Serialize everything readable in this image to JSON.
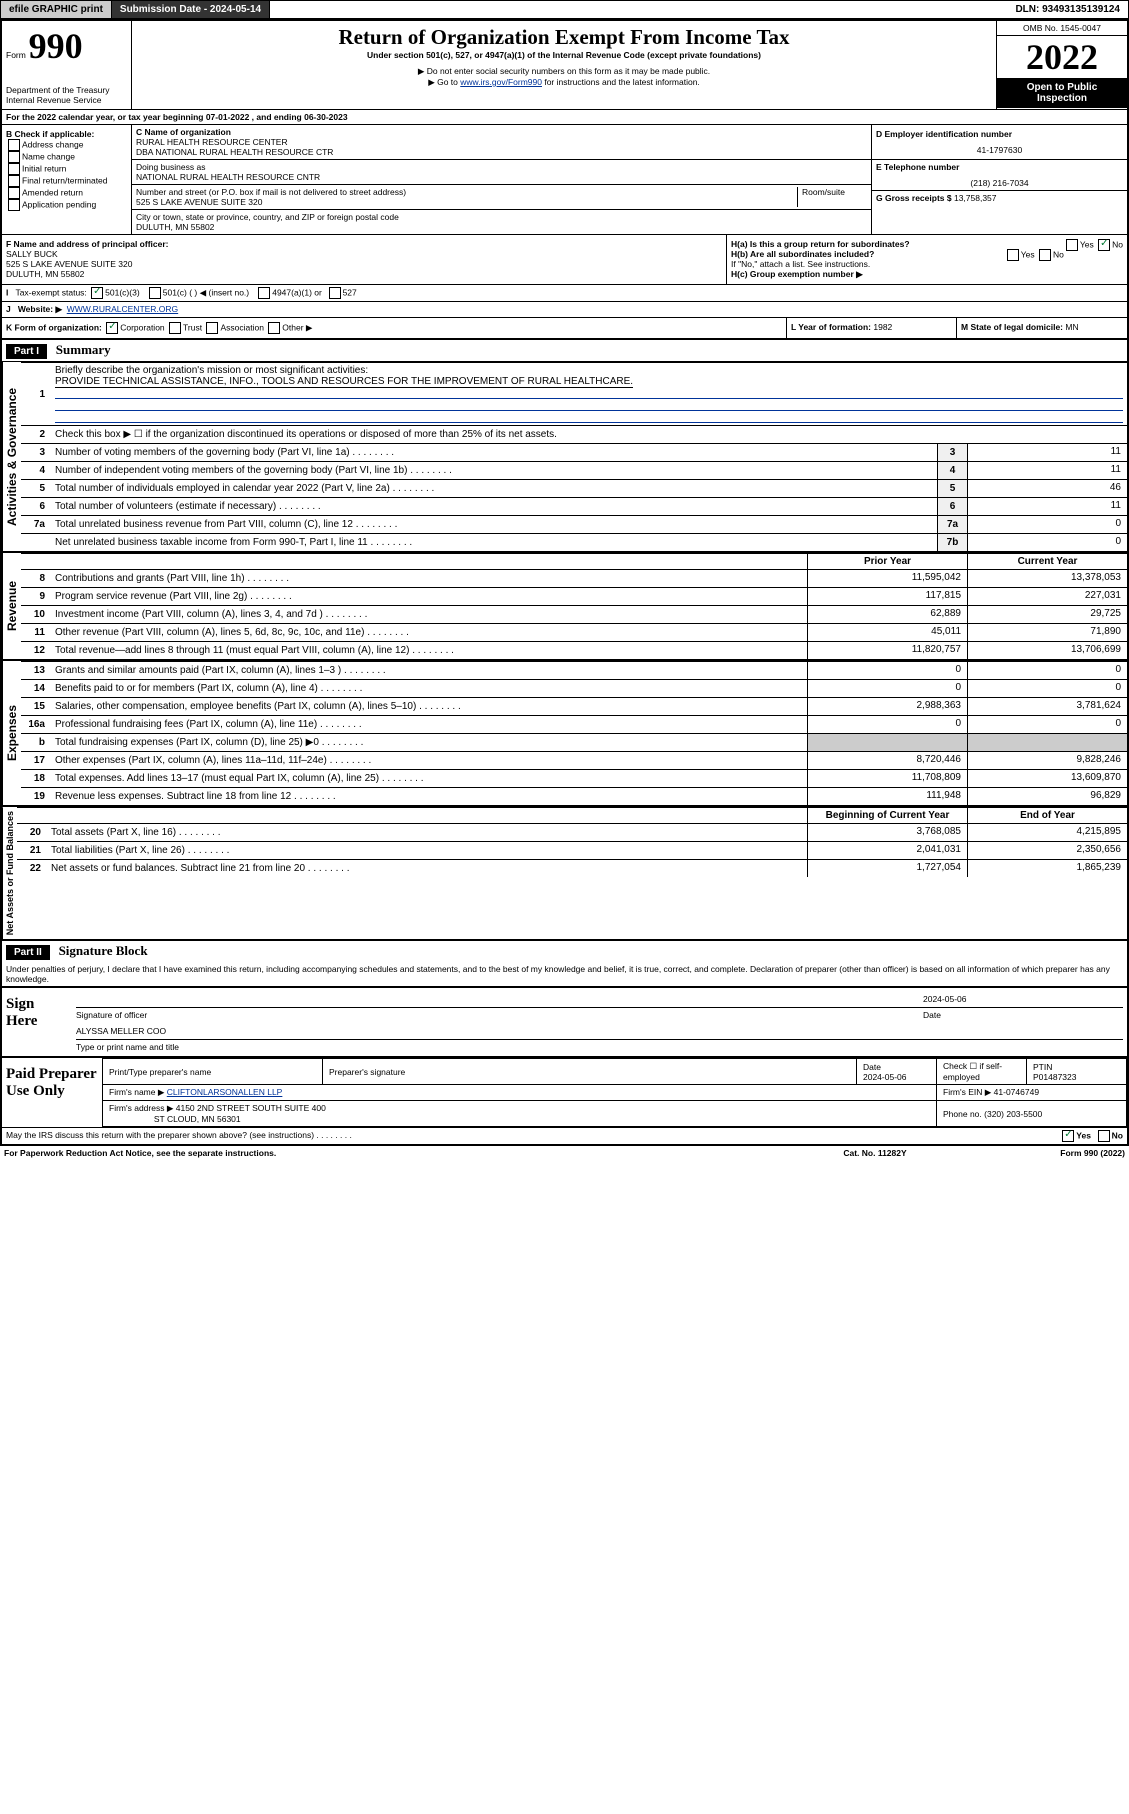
{
  "hdr": {
    "efile": "efile GRAPHIC print",
    "subdate_lbl": "Submission Date - ",
    "subdate": "2024-05-14",
    "dln_lbl": "DLN: ",
    "dln": "93493135139124"
  },
  "top": {
    "form": "Form",
    "f990": "990",
    "dept": "Department of the Treasury",
    "irs": "Internal Revenue Service",
    "title": "Return of Organization Exempt From Income Tax",
    "sub": "Under section 501(c), 527, or 4947(a)(1) of the Internal Revenue Code (except private foundations)",
    "note1": "▶ Do not enter social security numbers on this form as it may be made public.",
    "note2_pre": "▶ Go to ",
    "note2_link": "www.irs.gov/Form990",
    "note2_post": " for instructions and the latest information.",
    "omb": "OMB No. 1545-0047",
    "yr": "2022",
    "open": "Open to Public Inspection"
  },
  "A": {
    "line": "For the 2022 calendar year, or tax year beginning 07-01-2022    , and ending 06-30-2023"
  },
  "B": {
    "hdr": "B Check if applicable:",
    "items": [
      "Address change",
      "Name change",
      "Initial return",
      "Final return/terminated",
      "Amended return",
      "Application pending"
    ]
  },
  "C": {
    "lbl": "C Name of organization",
    "name1": "RURAL HEALTH RESOURCE CENTER",
    "name2": "DBA NATIONAL RURAL HEALTH RESOURCE CTR",
    "dba_lbl": "Doing business as",
    "dba": "NATIONAL RURAL HEALTH RESOURCE CNTR",
    "addr_lbl": "Number and street (or P.O. box if mail is not delivered to street address)",
    "room_lbl": "Room/suite",
    "addr": "525 S LAKE AVENUE SUITE 320",
    "city_lbl": "City or town, state or province, country, and ZIP or foreign postal code",
    "city": "DULUTH, MN  55802"
  },
  "D": {
    "lbl": "D Employer identification number",
    "val": "41-1797630"
  },
  "E": {
    "lbl": "E Telephone number",
    "val": "(218) 216-7034"
  },
  "G": {
    "lbl": "G Gross receipts $",
    "val": "13,758,357"
  },
  "F": {
    "lbl": "F  Name and address of principal officer:",
    "name": "SALLY BUCK",
    "addr": "525 S LAKE AVENUE SUITE 320",
    "city": "DULUTH, MN  55802"
  },
  "H": {
    "a": "H(a)  Is this a group return for subordinates?",
    "b": "H(b)  Are all subordinates included?",
    "b2": "If \"No,\" attach a list. See instructions.",
    "c": "H(c)  Group exemption number ▶",
    "yes": "Yes",
    "no": "No"
  },
  "I": {
    "lbl": "Tax-exempt status:",
    "o1": "501(c)(3)",
    "o2": "501(c) (  ) ◀ (insert no.)",
    "o3": "4947(a)(1) or",
    "o4": "527"
  },
  "J": {
    "lbl": "Website: ▶",
    "val": "WWW.RURALCENTER.ORG"
  },
  "K": {
    "lbl": "K Form of organization:",
    "opts": [
      "Corporation",
      "Trust",
      "Association",
      "Other ▶"
    ]
  },
  "L": {
    "lbl": "L Year of formation:",
    "val": "1982"
  },
  "M": {
    "lbl": "M State of legal domicile:",
    "val": "MN"
  },
  "partI": {
    "hdr": "Part I",
    "title": "Summary"
  },
  "p1": {
    "l1": "Briefly describe the organization's mission or most significant activities:",
    "mission": "PROVIDE TECHNICAL ASSISTANCE, INFO., TOOLS AND RESOURCES FOR THE IMPROVEMENT OF RURAL HEALTHCARE.",
    "l2": "Check this box ▶ ☐  if the organization discontinued its operations or disposed of more than 25% of its net assets.",
    "rows": [
      {
        "n": "3",
        "t": "Number of voting members of the governing body (Part VI, line 1a)",
        "box": "3",
        "v": "11"
      },
      {
        "n": "4",
        "t": "Number of independent voting members of the governing body (Part VI, line 1b)",
        "box": "4",
        "v": "11"
      },
      {
        "n": "5",
        "t": "Total number of individuals employed in calendar year 2022 (Part V, line 2a)",
        "box": "5",
        "v": "46"
      },
      {
        "n": "6",
        "t": "Total number of volunteers (estimate if necessary)",
        "box": "6",
        "v": "11"
      },
      {
        "n": "7a",
        "t": "Total unrelated business revenue from Part VIII, column (C), line 12",
        "box": "7a",
        "v": "0"
      },
      {
        "n": "",
        "t": "Net unrelated business taxable income from Form 990-T, Part I, line 11",
        "box": "7b",
        "v": "0"
      }
    ],
    "groups": {
      "ag": "Activities & Governance",
      "rev": "Revenue",
      "exp": "Expenses",
      "na": "Net Assets or Fund Balances"
    },
    "colp": "Prior Year",
    "colc": "Current Year",
    "rev": [
      {
        "n": "8",
        "t": "Contributions and grants (Part VIII, line 1h)",
        "p": "11,595,042",
        "c": "13,378,053"
      },
      {
        "n": "9",
        "t": "Program service revenue (Part VIII, line 2g)",
        "p": "117,815",
        "c": "227,031"
      },
      {
        "n": "10",
        "t": "Investment income (Part VIII, column (A), lines 3, 4, and 7d )",
        "p": "62,889",
        "c": "29,725"
      },
      {
        "n": "11",
        "t": "Other revenue (Part VIII, column (A), lines 5, 6d, 8c, 9c, 10c, and 11e)",
        "p": "45,011",
        "c": "71,890"
      },
      {
        "n": "12",
        "t": "Total revenue—add lines 8 through 11 (must equal Part VIII, column (A), line 12)",
        "p": "11,820,757",
        "c": "13,706,699"
      }
    ],
    "exp": [
      {
        "n": "13",
        "t": "Grants and similar amounts paid (Part IX, column (A), lines 1–3 )",
        "p": "0",
        "c": "0"
      },
      {
        "n": "14",
        "t": "Benefits paid to or for members (Part IX, column (A), line 4)",
        "p": "0",
        "c": "0"
      },
      {
        "n": "15",
        "t": "Salaries, other compensation, employee benefits (Part IX, column (A), lines 5–10)",
        "p": "2,988,363",
        "c": "3,781,624"
      },
      {
        "n": "16a",
        "t": "Professional fundraising fees (Part IX, column (A), line 11e)",
        "p": "0",
        "c": "0"
      },
      {
        "n": "b",
        "t": "Total fundraising expenses (Part IX, column (D), line 25) ▶0",
        "p": "",
        "c": ""
      },
      {
        "n": "17",
        "t": "Other expenses (Part IX, column (A), lines 11a–11d, 11f–24e)",
        "p": "8,720,446",
        "c": "9,828,246"
      },
      {
        "n": "18",
        "t": "Total expenses. Add lines 13–17 (must equal Part IX, column (A), line 25)",
        "p": "11,708,809",
        "c": "13,609,870"
      },
      {
        "n": "19",
        "t": "Revenue less expenses. Subtract line 18 from line 12",
        "p": "111,948",
        "c": "96,829"
      }
    ],
    "colb": "Beginning of Current Year",
    "cole": "End of Year",
    "na": [
      {
        "n": "20",
        "t": "Total assets (Part X, line 16)",
        "p": "3,768,085",
        "c": "4,215,895"
      },
      {
        "n": "21",
        "t": "Total liabilities (Part X, line 26)",
        "p": "2,041,031",
        "c": "2,350,656"
      },
      {
        "n": "22",
        "t": "Net assets or fund balances. Subtract line 21 from line 20",
        "p": "1,727,054",
        "c": "1,865,239"
      }
    ]
  },
  "partII": {
    "hdr": "Part II",
    "title": "Signature Block"
  },
  "sig": {
    "perj": "Under penalties of perjury, I declare that I have examined this return, including accompanying schedules and statements, and to the best of my knowledge and belief, it is true, correct, and complete. Declaration of preparer (other than officer) is based on all information of which preparer has any knowledge.",
    "here": "Sign Here",
    "sigoff": "Signature of officer",
    "date": "Date",
    "sigdate": "2024-05-06",
    "name": "ALYSSA MELLER  COO",
    "nametxt": "Type or print name and title"
  },
  "prep": {
    "lbl": "Paid Preparer Use Only",
    "c1": "Print/Type preparer's name",
    "c2": "Preparer's signature",
    "c3": "Date",
    "c3v": "2024-05-06",
    "c4": "Check ☐ if self-employed",
    "c5": "PTIN",
    "c5v": "P01487323",
    "firm_lbl": "Firm's name     ▶",
    "firm": "CLIFTONLARSONALLEN LLP",
    "ein_lbl": "Firm's EIN ▶",
    "ein": "41-0746749",
    "addr_lbl": "Firm's address ▶",
    "addr1": "4150 2ND STREET SOUTH SUITE 400",
    "addr2": "ST CLOUD, MN  56301",
    "ph_lbl": "Phone no.",
    "ph": "(320) 203-5500"
  },
  "ftr": {
    "q": "May the IRS discuss this return with the preparer shown above? (see instructions)",
    "yes": "Yes",
    "no": "No",
    "pra": "For Paperwork Reduction Act Notice, see the separate instructions.",
    "cat": "Cat. No. 11282Y",
    "form": "Form 990 (2022)"
  }
}
